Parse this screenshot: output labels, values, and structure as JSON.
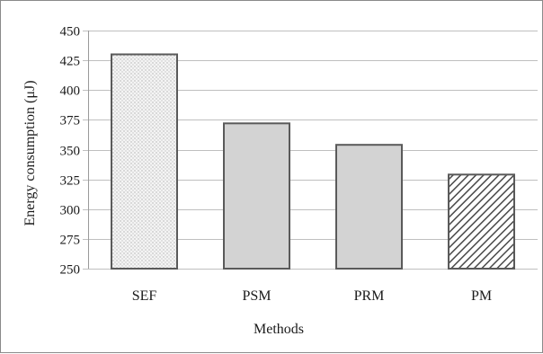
{
  "chart_data": {
    "type": "bar",
    "categories": [
      "SEF",
      "PSM",
      "PRM",
      "PM"
    ],
    "values": [
      430,
      372,
      354,
      329
    ],
    "fills": [
      "dots-light",
      "solid-gray",
      "solid-gray",
      "diagonal-hatch"
    ],
    "xlabel": "Methods",
    "ylabel": "Energy consumption (μJ)",
    "ylim": [
      250,
      450
    ],
    "yticks": [
      250,
      275,
      300,
      325,
      350,
      375,
      400,
      425,
      450
    ],
    "grid": true,
    "bar_fill_color": "#d3d3d3",
    "bar_stroke_color": "#5a5a5a",
    "grid_color": "#bfbfbf"
  }
}
